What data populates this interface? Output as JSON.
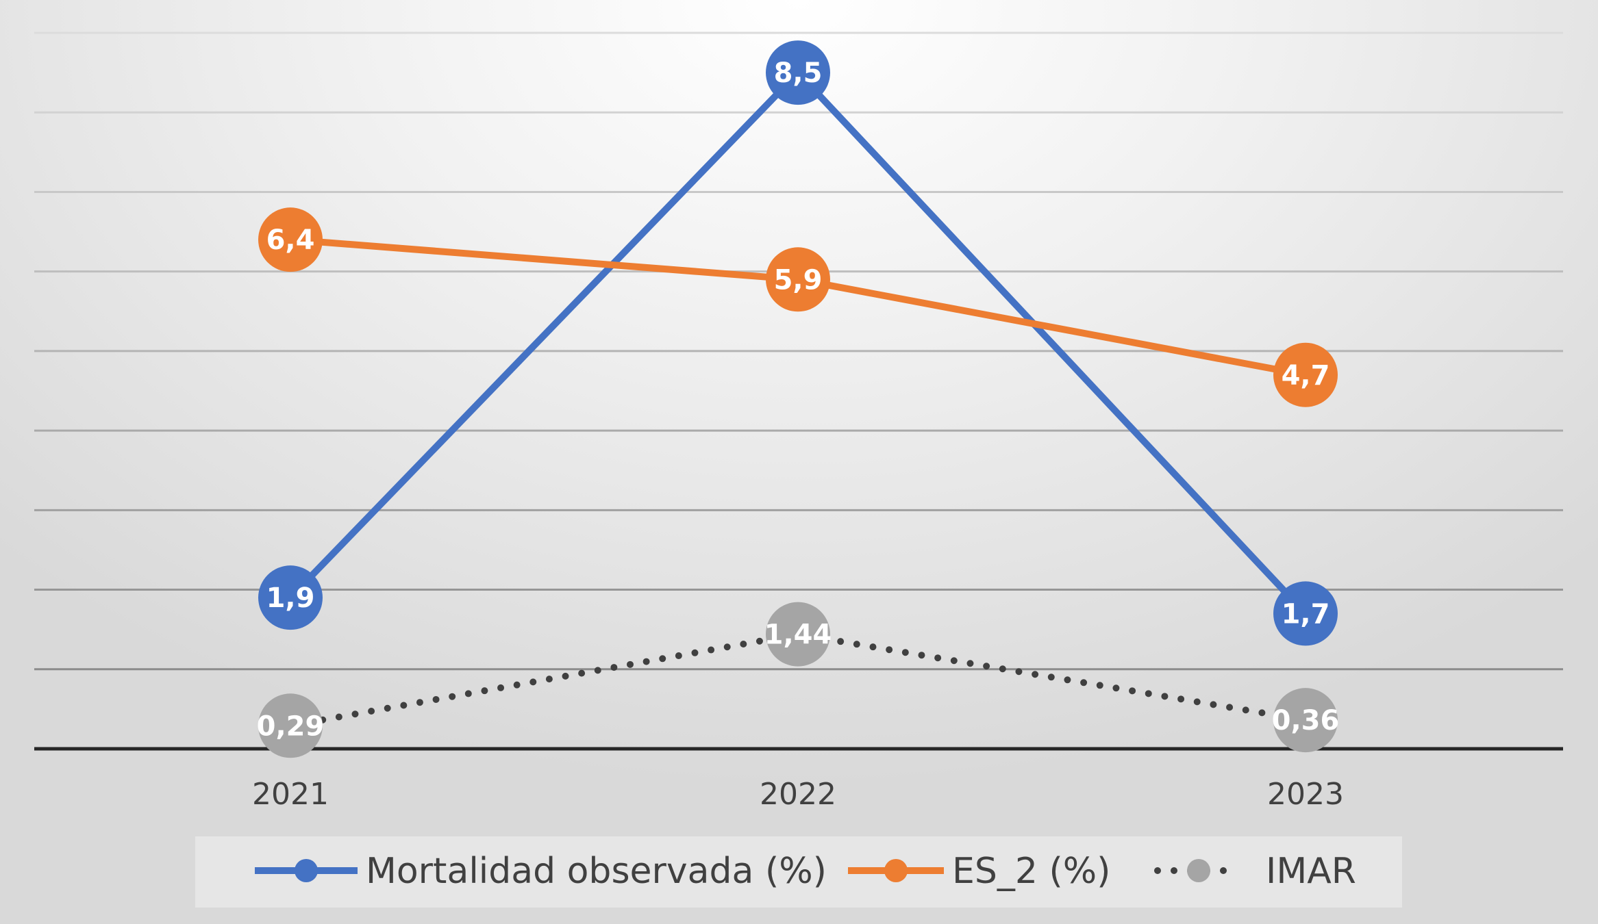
{
  "chart_data": {
    "type": "line",
    "categories": [
      "2021",
      "2022",
      "2023"
    ],
    "ylim": [
      0,
      9
    ],
    "grid": true,
    "legend_position": "bottom",
    "series": [
      {
        "name": "Mortalidad observada (%)",
        "values": [
          1.9,
          8.5,
          1.7
        ],
        "labels": [
          "1,9",
          "8,5",
          "1,7"
        ],
        "color": "#4472C4",
        "line_style": "solid"
      },
      {
        "name": "ES_2 (%)",
        "values": [
          6.4,
          5.9,
          4.7
        ],
        "labels": [
          "6,4",
          "5,9",
          "4,7"
        ],
        "color": "#ED7D31",
        "line_style": "solid"
      },
      {
        "name": "IMAR",
        "values": [
          0.29,
          1.44,
          0.36
        ],
        "labels": [
          "0,29",
          "1,44",
          "0,36"
        ],
        "color": "#A5A5A5",
        "line_style": "dotted"
      }
    ]
  }
}
